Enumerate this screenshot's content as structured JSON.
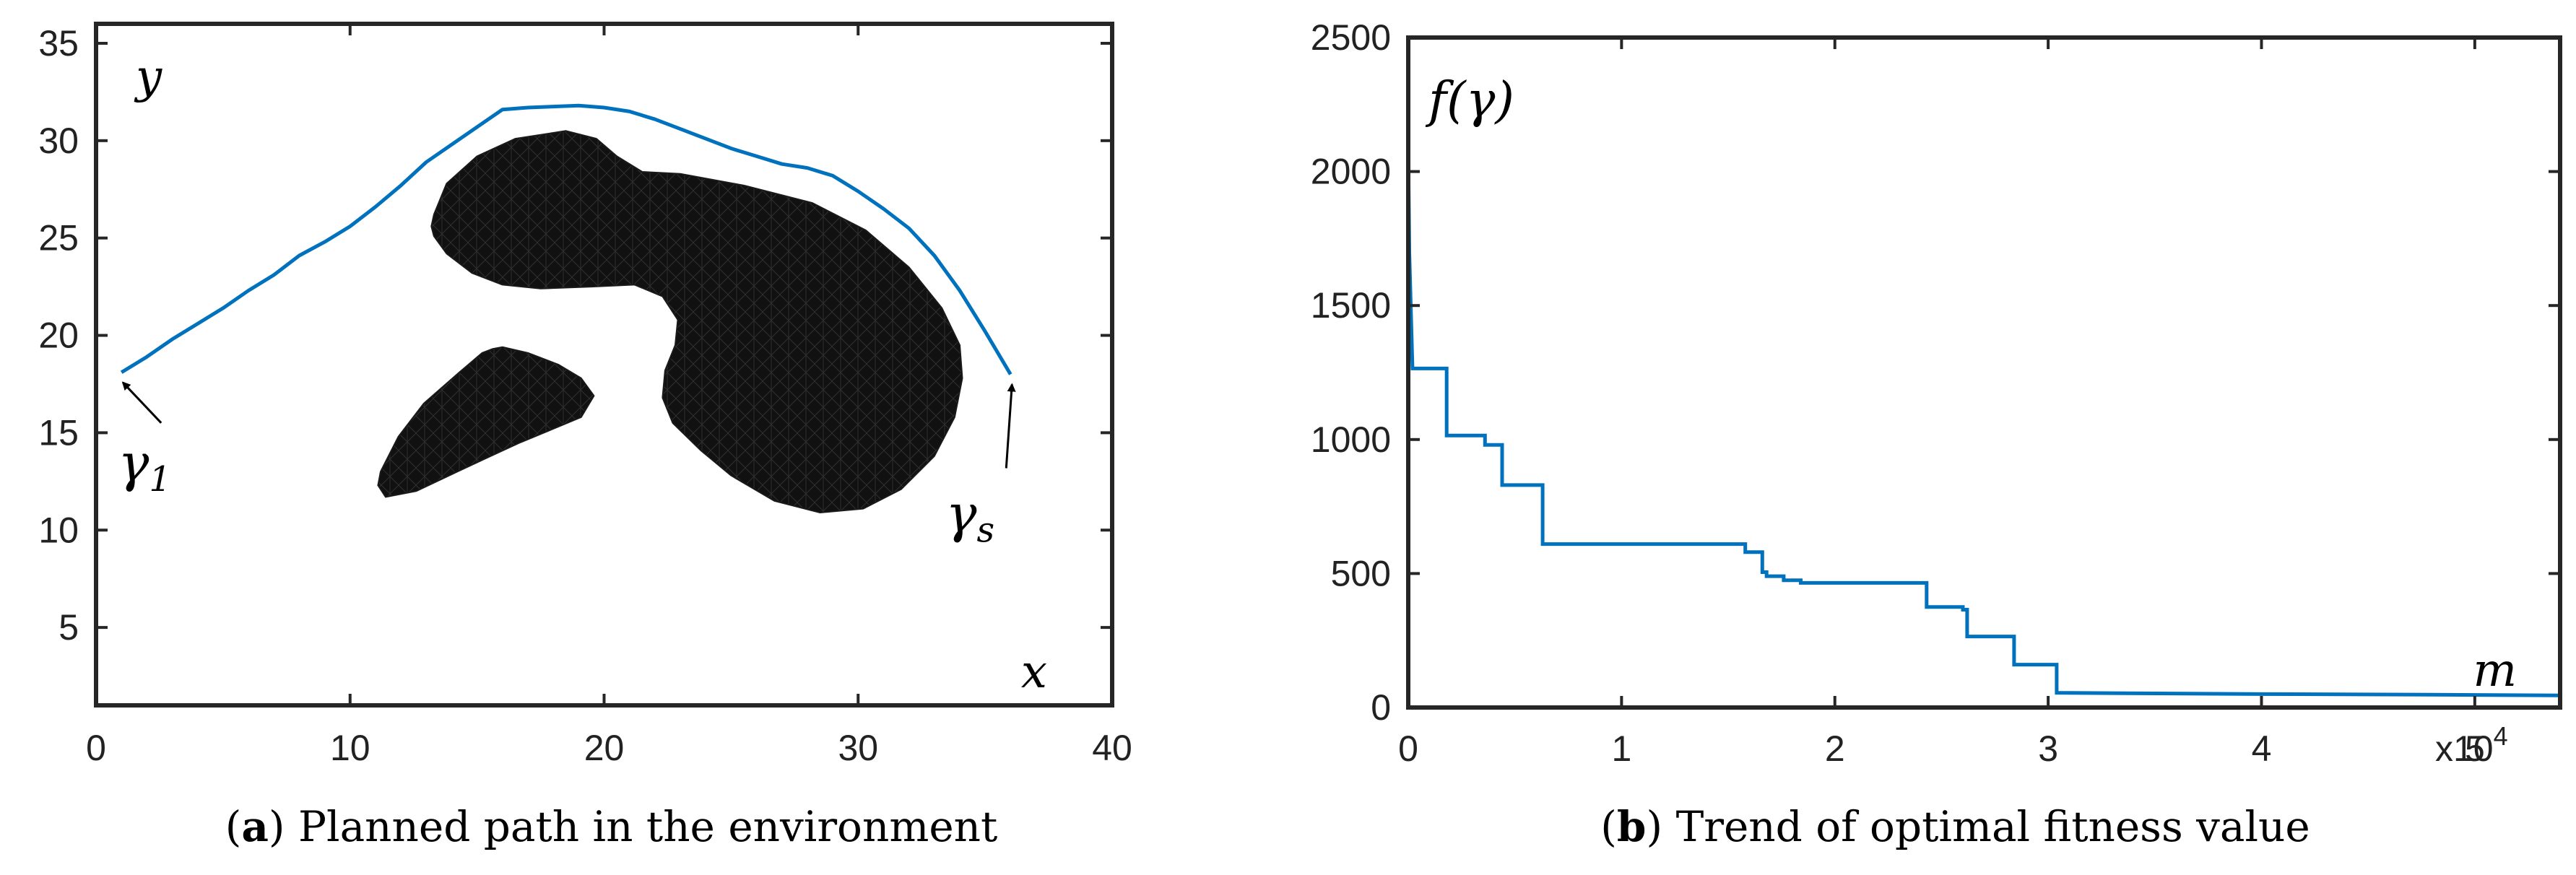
{
  "chart_data": [
    {
      "type": "line",
      "panel_label": "a",
      "caption": "Planned path in the environment",
      "xlabel": "x",
      "ylabel": "y",
      "xlim": [
        0,
        40
      ],
      "ylim": [
        1,
        36
      ],
      "xticks": [
        0,
        10,
        20,
        30,
        40
      ],
      "yticks": [
        5,
        10,
        15,
        20,
        25,
        30,
        35
      ],
      "series": [
        {
          "name": "planned path",
          "color": "#0072BD",
          "x": [
            1,
            2,
            3,
            4,
            5,
            6,
            7,
            8,
            9,
            10,
            11,
            12,
            13,
            14,
            15,
            16,
            17,
            18,
            19,
            20,
            21,
            22,
            23,
            24,
            25,
            26,
            27,
            28,
            29,
            30,
            31,
            32,
            33,
            34,
            35,
            36
          ],
          "y": [
            18.1,
            18.9,
            19.8,
            20.6,
            21.4,
            22.3,
            23.1,
            24.1,
            24.8,
            25.6,
            26.6,
            27.7,
            28.9,
            29.8,
            30.7,
            31.6,
            31.7,
            31.75,
            31.8,
            31.7,
            31.5,
            31.1,
            30.6,
            30.1,
            29.6,
            29.2,
            28.8,
            28.6,
            28.2,
            27.4,
            26.5,
            25.5,
            24.1,
            22.3,
            20.2,
            18.0
          ]
        }
      ],
      "obstacles": [
        {
          "name": "kidney-shaped obstacle",
          "color": "#1a1a1a",
          "x": [
            13.3,
            13.8,
            15,
            16.5,
            18.5,
            19.7,
            20.5,
            21.5,
            23,
            25.5,
            28.2,
            30.3,
            32,
            33.3,
            34,
            34.1,
            33.8,
            33,
            31.7,
            30.2,
            28.5,
            26.7,
            25,
            23.8,
            22.7,
            22.3,
            22.4,
            22.8,
            22.9,
            22.3,
            21.2,
            19.5,
            17.5,
            16,
            14.8,
            13.8,
            13.3,
            13.2
          ],
          "y": [
            26.2,
            27.8,
            29.2,
            30.1,
            30.5,
            30.1,
            29.2,
            28.4,
            28.3,
            27.7,
            26.8,
            25.4,
            23.5,
            21.4,
            19.5,
            17.8,
            15.8,
            13.8,
            12.1,
            11.1,
            10.9,
            11.5,
            12.8,
            14.1,
            15.5,
            16.8,
            18.2,
            19.5,
            20.8,
            22,
            22.6,
            22.5,
            22.4,
            22.6,
            23.2,
            24.2,
            25.1,
            25.6
          ]
        },
        {
          "name": "small obstacle",
          "color": "#1a1a1a",
          "x": [
            11.2,
            11.9,
            12.9,
            14.3,
            15.2,
            15.6,
            16,
            17,
            18.2,
            19.1,
            19.6,
            19.1,
            18,
            16.7,
            15.2,
            13.9,
            12.6,
            11.4,
            11.1
          ],
          "y": [
            13,
            14.8,
            16.5,
            18.1,
            19.1,
            19.3,
            19.4,
            19.1,
            18.5,
            17.8,
            16.9,
            15.8,
            15.2,
            14.5,
            13.6,
            12.8,
            12,
            11.7,
            12.3
          ]
        }
      ],
      "annotations": [
        {
          "label": "γ",
          "subscript": "1",
          "point": [
            1,
            18.1
          ]
        },
        {
          "label": "γ",
          "subscript": "s",
          "point": [
            36,
            18.0
          ]
        }
      ]
    },
    {
      "type": "line",
      "panel_label": "b",
      "caption": "Trend of optimal fitness value",
      "xlabel": "m",
      "ylabel": "f(γ)",
      "xlim": [
        0,
        5.4
      ],
      "ylim": [
        0,
        2500
      ],
      "x_scale_label": "x10",
      "x_scale_exponent": "4",
      "xticks": [
        0,
        1,
        2,
        3,
        4,
        5
      ],
      "yticks": [
        0,
        500,
        1000,
        1500,
        2000,
        2500
      ],
      "series": [
        {
          "name": "optimal fitness",
          "color": "#0072BD",
          "x": [
            0,
            0.005,
            0.02,
            0.18,
            0.18,
            0.36,
            0.36,
            0.44,
            0.44,
            0.63,
            0.63,
            1.58,
            1.58,
            1.66,
            1.66,
            1.68,
            1.68,
            1.76,
            1.76,
            1.84,
            1.84,
            2.43,
            2.43,
            2.6,
            2.6,
            2.62,
            2.62,
            2.84,
            2.84,
            3.04,
            3.04,
            4.0,
            4.8,
            5.4
          ],
          "y": [
            2080,
            1700,
            1265,
            1265,
            1015,
            1015,
            980,
            980,
            830,
            830,
            610,
            610,
            580,
            580,
            505,
            505,
            490,
            490,
            475,
            475,
            465,
            465,
            375,
            375,
            365,
            365,
            265,
            265,
            160,
            160,
            55,
            50,
            48,
            45
          ]
        }
      ]
    }
  ]
}
